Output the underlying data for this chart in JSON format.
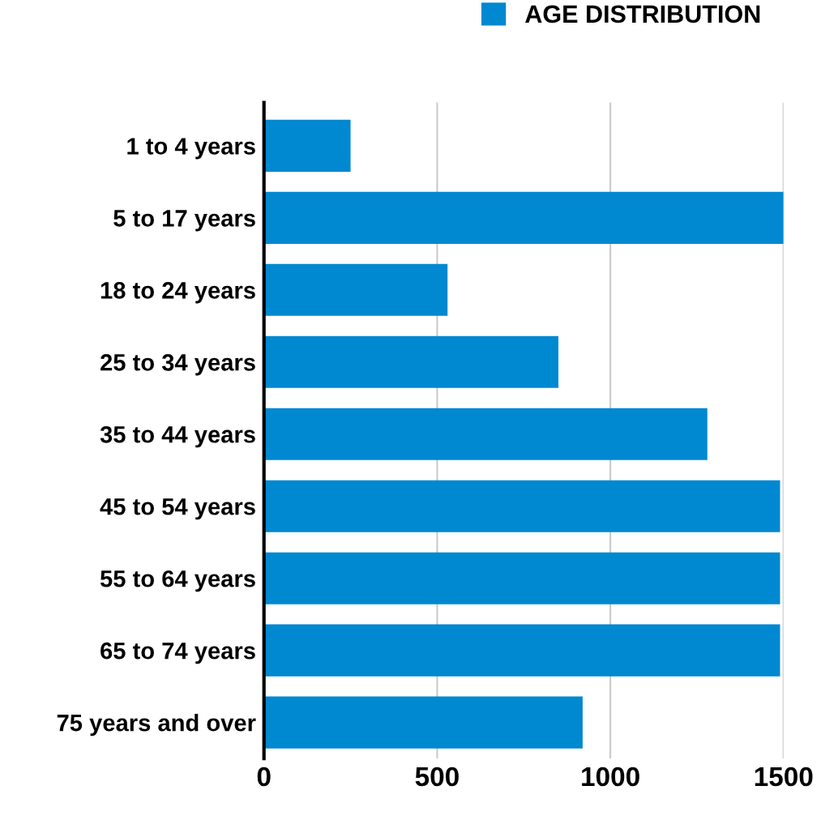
{
  "chart_data": {
    "type": "bar",
    "orientation": "horizontal",
    "categories": [
      "1 to 4 years",
      "5 to 17 years",
      "18 to 24 years",
      "25 to 34 years",
      "35 to 44 years",
      "45 to 54 years",
      "55 to 64 years",
      "65 to 74 years",
      "75 years and over"
    ],
    "series": [
      {
        "name": "AGE DISTRIBUTION",
        "color": "#0088d1",
        "values": [
          250,
          1500,
          530,
          850,
          1280,
          1490,
          1490,
          1490,
          920
        ]
      }
    ],
    "xlim": [
      0,
      1500
    ],
    "xticks": [
      0,
      500,
      1000,
      1500
    ],
    "grid": "x",
    "legend": "top right"
  }
}
